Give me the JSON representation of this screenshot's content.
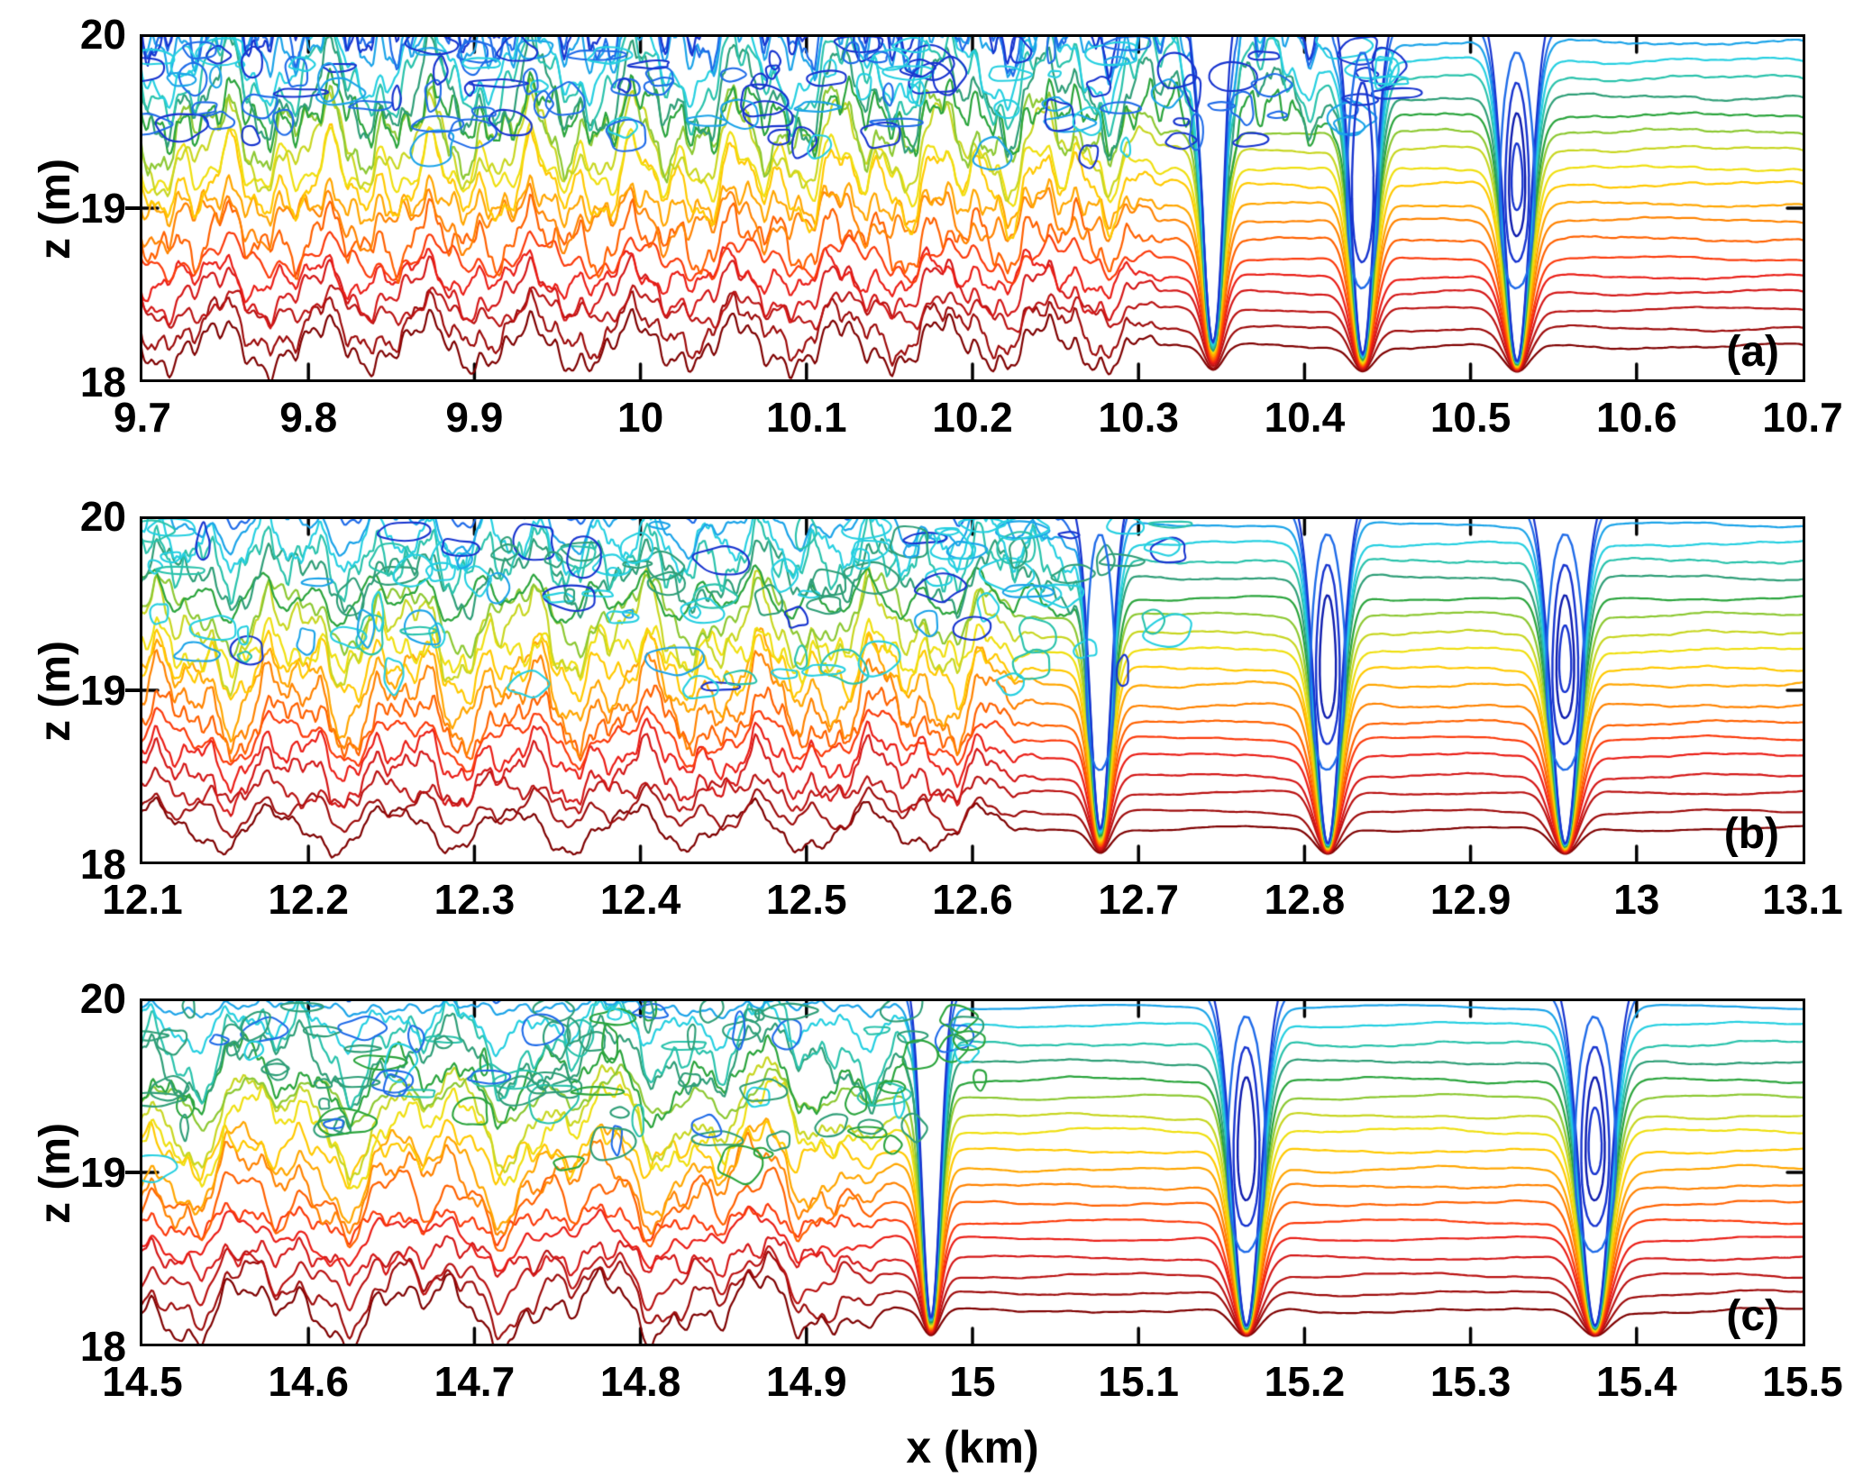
{
  "figure": {
    "xlabel": "x (km)",
    "ylabel": "z (m)",
    "background": "#ffffff",
    "axis_color": "#000000",
    "description": "Three stacked contour panels of isopycnal depth z (m) versus along-track distance x (km); turbulent overturning contours on the left of each panel, smooth arched contours with narrow downwelling plunges containing closed blue contours on the right."
  },
  "palette_bottom_to_top": [
    "#7f0000",
    "#9d0b0b",
    "#ba1212",
    "#d41717",
    "#ea1e17",
    "#fb3a0b",
    "#ff6100",
    "#ff8300",
    "#ffa600",
    "#ffc900",
    "#efdf10",
    "#c7d621",
    "#8cc832",
    "#2aa43c",
    "#2e9e77",
    "#29c2ab",
    "#25cfe0",
    "#1ba3e8",
    "#1f6be8",
    "#1734cf"
  ],
  "oval_color": "#0e1cae",
  "contour_base_depth_m": {
    "first": 18.19,
    "spacing": 0.1045
  },
  "chart_data": [
    {
      "type": "contour",
      "label": "(a)",
      "x_min": 9.7,
      "x_max": 10.7,
      "x_ticks": [
        "9.7",
        "9.8",
        "9.9",
        "10",
        "10.1",
        "10.2",
        "10.3",
        "10.4",
        "10.5",
        "10.6",
        "10.7"
      ],
      "y_min": 18,
      "y_max": 20,
      "y_ticks": [
        "20",
        "19",
        "18"
      ],
      "turbulence_until_km": 10.33,
      "upper_turbulence_until_km": 10.44,
      "downwelling_km": [
        10.35,
        10.44,
        10.53
      ],
      "render": {
        "seed": 11,
        "freqs": [
          16,
          33,
          67,
          131,
          259
        ],
        "fweights": [
          0.42,
          0.27,
          0.16,
          0.08,
          0.04
        ],
        "bucket_amps": [
          0.3,
          0.46,
          0.52,
          0.55
        ],
        "turb_end": 0.63,
        "upper_end": 0.74,
        "plunges": [
          {
            "c": 0.645,
            "w": 0.0085,
            "d": 0.9,
            "ovals": 0
          },
          {
            "c": 0.735,
            "w": 0.01,
            "d": 0.95,
            "ovals": 2
          },
          {
            "c": 0.828,
            "w": 0.011,
            "d": 0.97,
            "ovals": 4
          }
        ],
        "scribbles": {
          "count": 130,
          "zlow": 19.3,
          "zhigh": 19.98,
          "colors": [
            19,
            18,
            18,
            17,
            19,
            16
          ]
        }
      }
    },
    {
      "type": "contour",
      "label": "(b)",
      "x_min": 12.1,
      "x_max": 13.1,
      "x_ticks": [
        "12.1",
        "12.2",
        "12.3",
        "12.4",
        "12.5",
        "12.6",
        "12.7",
        "12.8",
        "12.9",
        "13",
        "13.1"
      ],
      "y_min": 18,
      "y_max": 20,
      "y_ticks": [
        "20",
        "19",
        "18"
      ],
      "turbulence_until_km": 12.65,
      "upper_turbulence_until_km": 12.7,
      "downwelling_km": [
        12.68,
        12.81,
        12.96
      ],
      "render": {
        "seed": 23,
        "freqs": [
          14,
          30,
          61,
          119,
          233
        ],
        "fweights": [
          0.42,
          0.27,
          0.16,
          0.08,
          0.04
        ],
        "bucket_amps": [
          0.3,
          0.45,
          0.48,
          0.26
        ],
        "turb_end": 0.55,
        "upper_end": 0.6,
        "plunges": [
          {
            "c": 0.577,
            "w": 0.009,
            "d": 0.93,
            "ovals": 1
          },
          {
            "c": 0.714,
            "w": 0.011,
            "d": 0.97,
            "ovals": 3
          },
          {
            "c": 0.857,
            "w": 0.012,
            "d": 0.97,
            "ovals": 4
          }
        ],
        "scribbles": {
          "count": 115,
          "zlow": 19.0,
          "zhigh": 19.97,
          "colors": [
            16,
            15,
            16,
            17,
            14,
            16,
            19
          ]
        }
      }
    },
    {
      "type": "contour",
      "label": "(c)",
      "x_min": 14.5,
      "x_max": 15.5,
      "x_ticks": [
        "14.5",
        "14.6",
        "14.7",
        "14.8",
        "14.9",
        "15",
        "15.1",
        "15.2",
        "15.3",
        "15.4",
        "15.5"
      ],
      "y_min": 18,
      "y_max": 20,
      "y_ticks": [
        "20",
        "19",
        "18"
      ],
      "turbulence_until_km": 14.97,
      "upper_turbulence_until_km": 15.0,
      "downwelling_km": [
        14.98,
        15.16,
        15.37
      ],
      "render": {
        "seed": 37,
        "freqs": [
          10,
          22,
          45,
          89,
          181
        ],
        "fweights": [
          0.42,
          0.27,
          0.16,
          0.08,
          0.04
        ],
        "bucket_amps": [
          0.34,
          0.48,
          0.46,
          0.14
        ],
        "turb_end": 0.465,
        "upper_end": 0.5,
        "plunges": [
          {
            "c": 0.475,
            "w": 0.008,
            "d": 0.95,
            "ovals": 0
          },
          {
            "c": 0.665,
            "w": 0.012,
            "d": 0.97,
            "ovals": 3
          },
          {
            "c": 0.875,
            "w": 0.013,
            "d": 0.97,
            "ovals": 4
          }
        ],
        "scribbles": {
          "count": 100,
          "zlow": 18.95,
          "zhigh": 19.97,
          "colors": [
            14,
            13,
            14,
            15,
            13,
            14,
            16,
            18
          ]
        }
      }
    }
  ],
  "layout_tops": [
    38,
    573,
    1108
  ]
}
